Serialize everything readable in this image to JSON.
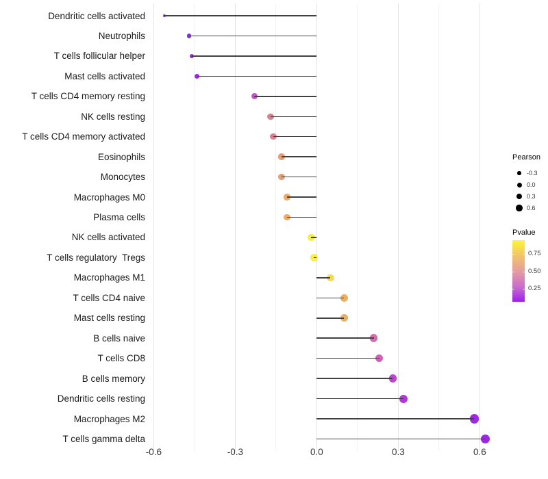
{
  "colors": {
    "background": "#ffffff",
    "grid_major": "#e3e3e3",
    "grid_minor": "#f2f2f2",
    "stem": "#404040",
    "axis_text": "#333333",
    "legend_dot": "#000000"
  },
  "chart_data": {
    "type": "lollipop",
    "title": "",
    "xlabel": "",
    "ylabel": "",
    "xlim": [
      -0.616,
      0.682
    ],
    "x_ticks": [
      -0.6,
      -0.3,
      0.0,
      0.3,
      0.6
    ],
    "x_tick_labels": [
      "-0.6",
      "-0.3",
      "0.0",
      "0.3",
      "0.6"
    ],
    "x_minor_ticks": [
      -0.45,
      -0.15,
      0.15,
      0.45
    ],
    "grid": "vertical only, major and minor, no axis lines, no tick marks",
    "legend_position": "right",
    "rows": [
      {
        "label": "Dendritic cells activated",
        "pearson": -0.56,
        "color": "#8c2be0"
      },
      {
        "label": "Neutrophils",
        "pearson": -0.47,
        "color": "#8e2ae1"
      },
      {
        "label": "T cells follicular helper",
        "pearson": -0.46,
        "color": "#902be1"
      },
      {
        "label": "Mast cells activated",
        "pearson": -0.44,
        "color": "#962ee0"
      },
      {
        "label": "T cells CD4 memory resting",
        "pearson": -0.23,
        "color": "#c455c4"
      },
      {
        "label": "NK cells resting",
        "pearson": -0.17,
        "color": "#d87f92"
      },
      {
        "label": "T cells CD4 memory activated",
        "pearson": -0.16,
        "color": "#d87f90"
      },
      {
        "label": "Eosinophils",
        "pearson": -0.13,
        "color": "#e69e72"
      },
      {
        "label": "Monocytes",
        "pearson": -0.13,
        "color": "#e59d75"
      },
      {
        "label": "Macrophages M0",
        "pearson": -0.11,
        "color": "#edaa64"
      },
      {
        "label": "Plasma cells",
        "pearson": -0.11,
        "color": "#edaa64"
      },
      {
        "label": "NK cells activated",
        "pearson": -0.02,
        "color": "#f8ee3e"
      },
      {
        "label": "T cells regulatory  Tregs",
        "pearson": -0.01,
        "color": "#fbf138"
      },
      {
        "label": "Macrophages M1",
        "pearson": 0.05,
        "color": "#f4d957"
      },
      {
        "label": "T cells CD4 naive",
        "pearson": 0.1,
        "color": "#eaaf67"
      },
      {
        "label": "Mast cells resting",
        "pearson": 0.1,
        "color": "#eaaf67"
      },
      {
        "label": "B cells naive",
        "pearson": 0.21,
        "color": "#d06fae"
      },
      {
        "label": "T cells CD8",
        "pearson": 0.23,
        "color": "#cd63b8"
      },
      {
        "label": "B cells memory",
        "pearson": 0.28,
        "color": "#bc45cd"
      },
      {
        "label": "Dendritic cells resting",
        "pearson": 0.32,
        "color": "#b138d8"
      },
      {
        "label": "Macrophages M2",
        "pearson": 0.58,
        "color": "#9b2ae1"
      },
      {
        "label": "T cells gamma delta",
        "pearson": 0.62,
        "color": "#9b26e3"
      }
    ],
    "legends": {
      "size": {
        "title": "Pearson",
        "item_labels": [
          "-0.3",
          "0.0",
          "0.3",
          "0.6"
        ],
        "item_values": [
          -0.3,
          0.0,
          0.3,
          0.6
        ],
        "dot_color": "#000000"
      },
      "color": {
        "title": "Pvalue",
        "tick_labels": [
          "0.75",
          "0.50",
          "0.25"
        ],
        "gradient_top_to_bottom": [
          "#fdf53b",
          "#f2c469",
          "#e59da0",
          "#cc6ecc",
          "#9d1ff0"
        ]
      }
    }
  }
}
